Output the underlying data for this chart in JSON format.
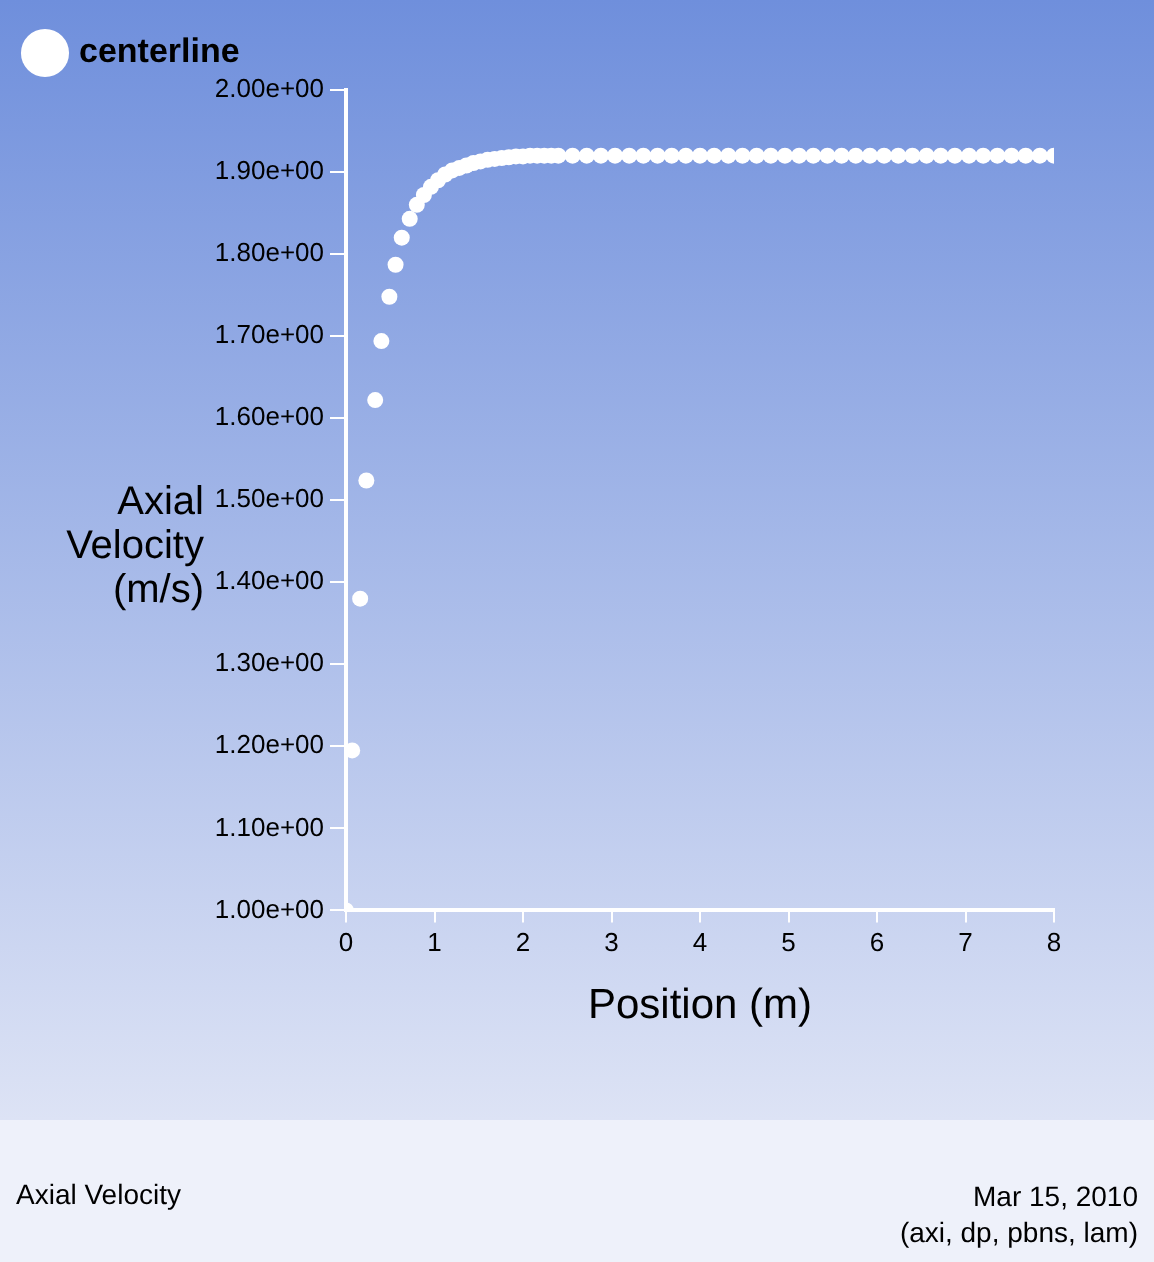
{
  "chart_data": {
    "type": "scatter",
    "title": "Axial Velocity",
    "xlabel": "Position (m)",
    "ylabel": "Axial Velocity (m/s)",
    "annotations": [
      "Mar 15, 2010",
      "(axi, dp, pbns, lam)"
    ],
    "series": [
      {
        "name": "centerline",
        "color": "#ffffff",
        "x": [
          0,
          0.07,
          0.16,
          0.23,
          0.33,
          0.4,
          0.49,
          0.56,
          0.63,
          0.72,
          0.8,
          0.88,
          0.96,
          1.04,
          1.12,
          1.2,
          1.28,
          1.36,
          1.44,
          1.52,
          1.6,
          1.68,
          1.76,
          1.84,
          1.92,
          2.0,
          2.08,
          2.16,
          2.24,
          2.32,
          2.4,
          2.56,
          2.72,
          2.88,
          3.04,
          3.2,
          3.36,
          3.52,
          3.68,
          3.84,
          4.0,
          4.16,
          4.32,
          4.48,
          4.64,
          4.8,
          4.96,
          5.12,
          5.28,
          5.44,
          5.6,
          5.76,
          5.92,
          6.08,
          6.24,
          6.4,
          6.56,
          6.72,
          6.88,
          7.04,
          7.2,
          7.36,
          7.52,
          7.68,
          7.84,
          8.0
        ],
        "values": [
          1.0,
          1.195,
          1.38,
          1.524,
          1.622,
          1.694,
          1.748,
          1.787,
          1.82,
          1.843,
          1.86,
          1.872,
          1.882,
          1.89,
          1.897,
          1.902,
          1.905,
          1.908,
          1.911,
          1.913,
          1.915,
          1.916,
          1.917,
          1.918,
          1.919,
          1.919,
          1.92,
          1.92,
          1.92,
          1.92,
          1.92,
          1.92,
          1.92,
          1.92,
          1.92,
          1.92,
          1.92,
          1.92,
          1.92,
          1.92,
          1.92,
          1.92,
          1.92,
          1.92,
          1.92,
          1.92,
          1.92,
          1.92,
          1.92,
          1.92,
          1.92,
          1.92,
          1.92,
          1.92,
          1.92,
          1.92,
          1.92,
          1.92,
          1.92,
          1.92,
          1.92,
          1.92,
          1.92,
          1.92,
          1.92,
          1.92
        ]
      }
    ],
    "xlim": [
      0,
      8
    ],
    "xticks": [
      0,
      1,
      2,
      3,
      4,
      5,
      6,
      7,
      8
    ],
    "ylim": [
      1,
      2
    ],
    "yticks": [
      {
        "value": 1,
        "label": "1.00e+00"
      },
      {
        "value": 1.1,
        "label": "1.10e+00"
      },
      {
        "value": 1.2,
        "label": "1.20e+00"
      },
      {
        "value": 1.3,
        "label": "1.30e+00"
      },
      {
        "value": 1.4,
        "label": "1.40e+00"
      },
      {
        "value": 1.5,
        "label": "1.50e+00"
      },
      {
        "value": 1.6,
        "label": "1.60e+00"
      },
      {
        "value": 1.7,
        "label": "1.70e+00"
      },
      {
        "value": 1.8,
        "label": "1.80e+00"
      },
      {
        "value": 1.9,
        "label": "1.90e+00"
      },
      {
        "value": 2,
        "label": "2.00e+00"
      }
    ],
    "grid": false,
    "legend": "top left",
    "marker": "circle"
  }
}
